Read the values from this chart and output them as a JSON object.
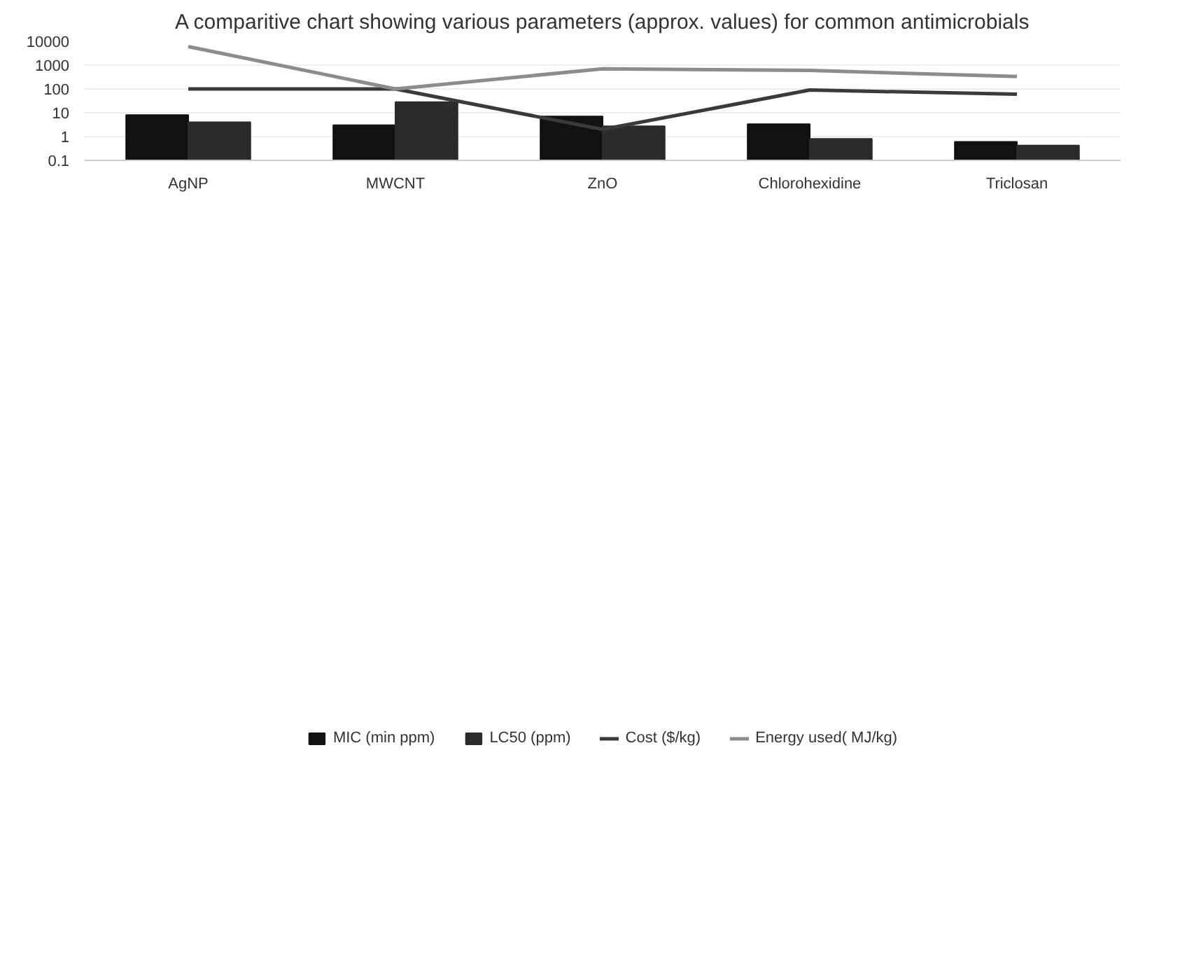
{
  "chart_data": {
    "type": "bar",
    "title": "A comparitive chart showing various parameters (approx. values) for common antimicrobials",
    "categories": [
      "AgNP",
      "MWCNT",
      "ZnO",
      "Chlorohexidine",
      "Triclosan"
    ],
    "series": [
      {
        "name": "MIC (min ppm)",
        "color": "#111111",
        "values": [
          8,
          3,
          7,
          3.3,
          0.6
        ]
      },
      {
        "name": "LC50 (ppm)",
        "color": "#2b2b2b",
        "values": [
          4,
          28,
          2.7,
          0.8,
          0.42
        ]
      },
      {
        "name": "Cost ($/kg)",
        "type": "line",
        "color": "#3a3a3a",
        "values": [
          100,
          100,
          2,
          90,
          60
        ]
      },
      {
        "name": "Energy used( MJ/kg)",
        "type": "line",
        "color": "#8c8c8c",
        "values": [
          6000,
          100,
          700,
          600,
          330
        ]
      }
    ],
    "log": true,
    "ylim": [
      0.1,
      10000
    ],
    "yticks": [
      0.1,
      1,
      10,
      100,
      1000,
      10000
    ],
    "grid": "y",
    "legend": "bottom"
  }
}
